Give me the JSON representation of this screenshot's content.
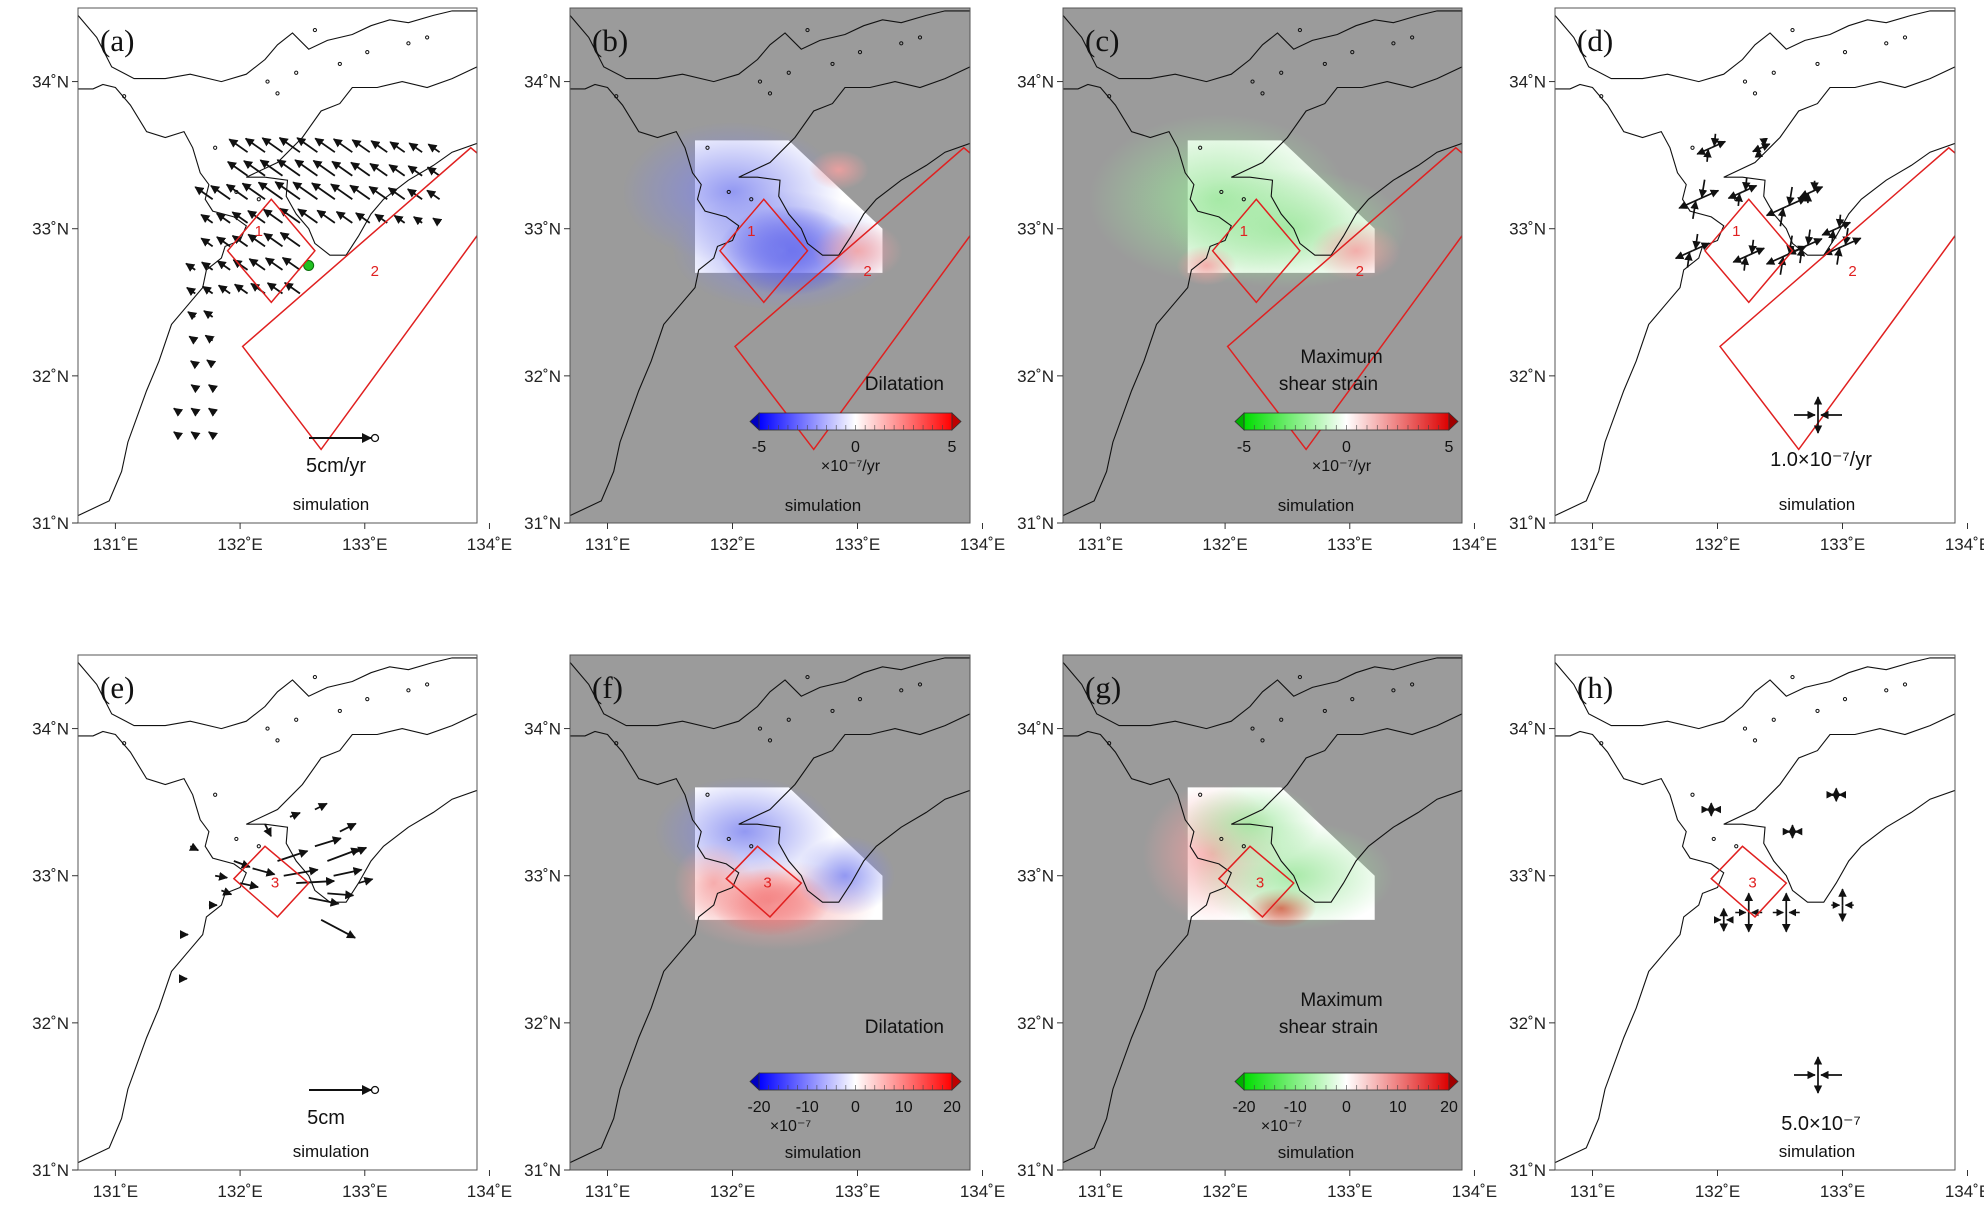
{
  "axes": {
    "lat_labels": [
      "34˚N",
      "33˚N",
      "32˚N",
      "31˚N"
    ],
    "lat_values": [
      34,
      33,
      32,
      31
    ],
    "lon_labels": [
      "131˚E",
      "132˚E",
      "133˚E",
      "134˚E"
    ],
    "lon_values": [
      131,
      132,
      133,
      134
    ],
    "lon_range": [
      130.7,
      133.9
    ],
    "lat_range": [
      31.0,
      34.5
    ]
  },
  "colors": {
    "sea": "#9b9b9b",
    "fault": "#e02020",
    "coast": "#111111",
    "station_marker": "#22c022",
    "dilatation_low": "#0000ff",
    "dilatation_high": "#ff0000",
    "shear_low": "#00dd00",
    "shear_high": "#dd0000"
  },
  "panels": [
    {
      "id": "a",
      "label": "(a)",
      "type": "displacement",
      "background": "white",
      "note": "simulation",
      "scale_label": "5cm/yr",
      "faults": [
        "1",
        "2"
      ]
    },
    {
      "id": "b",
      "label": "(b)",
      "type": "dilatation",
      "background": "sea",
      "note": "simulation",
      "title": [
        "Dilatation"
      ],
      "colorbar": {
        "ticks": [
          "-5",
          "0",
          "5"
        ],
        "unit": "×10⁻⁷/yr",
        "scheme": "dilatation"
      },
      "faults": [
        "1",
        "2"
      ]
    },
    {
      "id": "c",
      "label": "(c)",
      "type": "shear",
      "background": "sea",
      "note": "simulation",
      "title": [
        "Maximum",
        "shear strain"
      ],
      "colorbar": {
        "ticks": [
          "-5",
          "0",
          "5"
        ],
        "unit": "×10⁻⁷/yr",
        "scheme": "shear"
      },
      "faults": [
        "1",
        "2"
      ]
    },
    {
      "id": "d",
      "label": "(d)",
      "type": "strain_axes",
      "background": "white",
      "note": "simulation",
      "scale_label": "1.0×10⁻⁷/yr",
      "faults": [
        "1",
        "2"
      ]
    },
    {
      "id": "e",
      "label": "(e)",
      "type": "displacement",
      "background": "white",
      "note": "simulation",
      "scale_label": "5cm",
      "faults": [
        "3"
      ]
    },
    {
      "id": "f",
      "label": "(f)",
      "type": "dilatation",
      "background": "sea",
      "note": "simulation",
      "title": [
        "Dilatation"
      ],
      "colorbar": {
        "ticks": [
          "-20",
          "-10",
          "0",
          "10",
          "20"
        ],
        "unit": "×10⁻⁷",
        "scheme": "dilatation"
      },
      "faults": [
        "3"
      ]
    },
    {
      "id": "g",
      "label": "(g)",
      "type": "shear",
      "background": "sea",
      "note": "simulation",
      "title": [
        "Maximum",
        "shear strain"
      ],
      "colorbar": {
        "ticks": [
          "-20",
          "-10",
          "0",
          "10",
          "20"
        ],
        "unit": "×10⁻⁷",
        "scheme": "shear"
      },
      "faults": [
        "3"
      ]
    },
    {
      "id": "h",
      "label": "(h)",
      "type": "strain_axes",
      "background": "white",
      "note": "simulation",
      "scale_label": "5.0×10⁻⁷",
      "faults": [
        "3"
      ]
    }
  ],
  "fault_labels": {
    "1": "1",
    "2": "2",
    "3": "3"
  }
}
